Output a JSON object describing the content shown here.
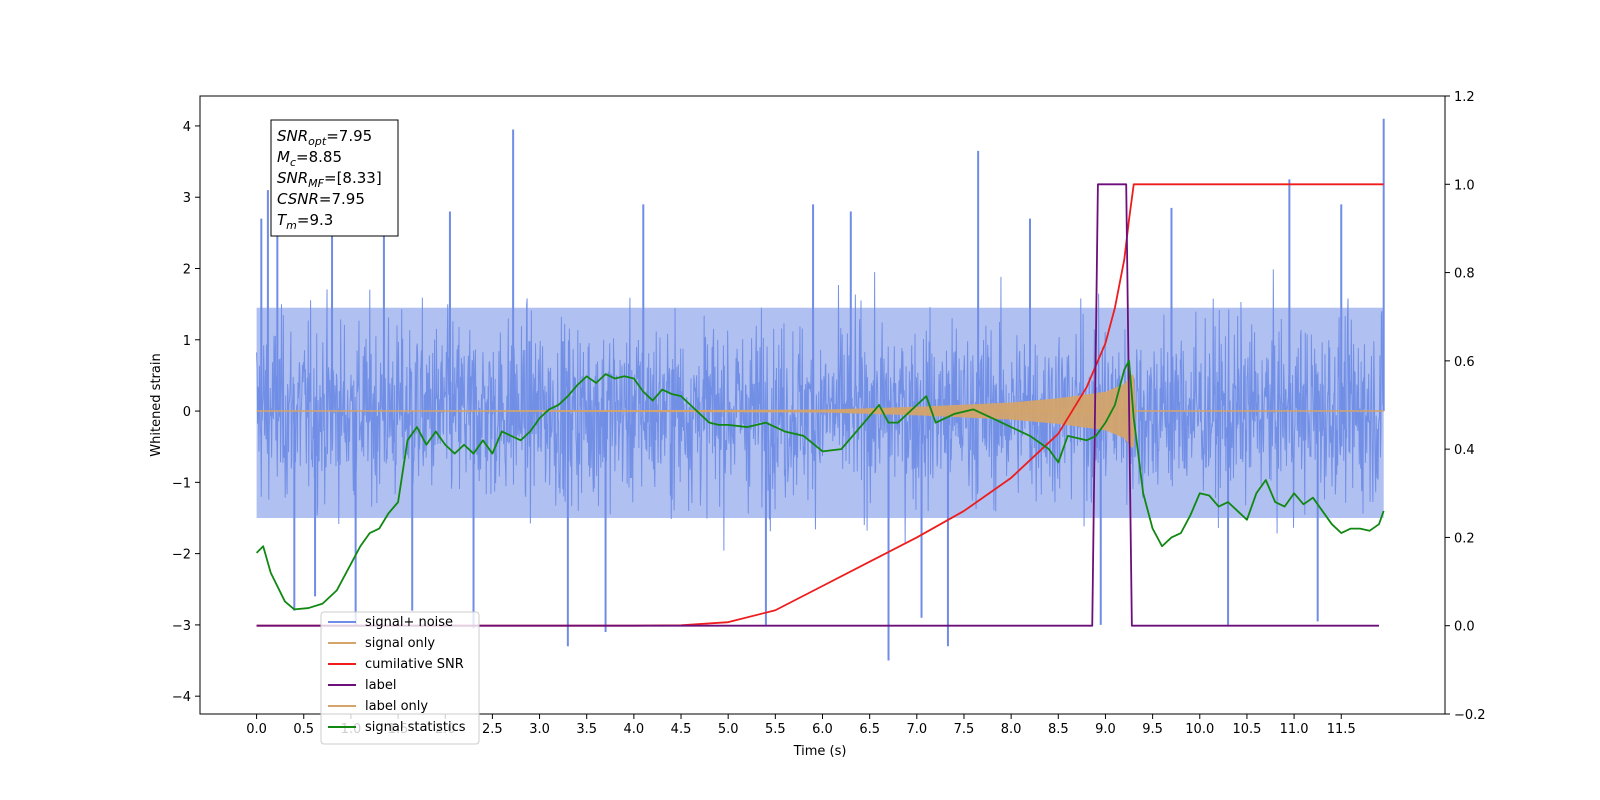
{
  "chart_data": {
    "type": "line",
    "title": "",
    "xlabel": "Time (s)",
    "ylabel": "Whitened strain",
    "y2label": "",
    "xlim": [
      -0.6,
      12.6
    ],
    "ylim": [
      -4.25,
      4.42
    ],
    "y2lim": [
      -0.2,
      1.2
    ],
    "xticks": [
      0.0,
      0.5,
      1.0,
      1.5,
      2.0,
      2.5,
      3.0,
      3.5,
      4.0,
      4.5,
      5.0,
      5.5,
      6.0,
      6.5,
      7.0,
      7.5,
      8.0,
      8.5,
      9.0,
      9.5,
      10.0,
      10.5,
      11.0,
      11.5
    ],
    "xtick_labels": [
      "0.0",
      "0.5",
      "1.0",
      "1.5",
      "2.0",
      "2.5",
      "3.0",
      "3.5",
      "4.0",
      "4.5",
      "5.0",
      "5.5",
      "6.0",
      "6.5",
      "7.0",
      "7.5",
      "8.0",
      "8.5",
      "9.0",
      "9.5",
      "10.0",
      "10.5",
      "11.0",
      "11.5"
    ],
    "yticks": [
      4,
      3,
      2,
      1,
      0,
      -1,
      -2,
      -3,
      -4
    ],
    "ytick_labels": [
      "4",
      "3",
      "2",
      "1",
      "0",
      "−1",
      "−2",
      "−3",
      "−4"
    ],
    "y2ticks": [
      1.2,
      1.0,
      0.8,
      0.6,
      0.4,
      0.2,
      0.0,
      -0.2
    ],
    "y2tick_labels": [
      "1.2",
      "1.0",
      "0.8",
      "0.6",
      "0.4",
      "0.2",
      "0.0",
      "−0.2"
    ],
    "grid": false,
    "legend_position": "lower-left",
    "annotation": {
      "lines": [
        {
          "base": "SNR",
          "sub": "opt",
          "value": "=7.95"
        },
        {
          "base": "M",
          "sub": "c",
          "value": "=8.85"
        },
        {
          "base": "SNR",
          "sub": "MF",
          "value": "=[8.33]"
        },
        {
          "base": "CSNR",
          "sub": "",
          "value": "=7.95"
        },
        {
          "base": "T",
          "sub": "m",
          "value": "=9.3"
        }
      ]
    },
    "noise_spikes": {
      "x": [
        0.05,
        0.12,
        0.22,
        0.4,
        0.62,
        0.8,
        1.05,
        1.35,
        1.65,
        2.05,
        2.3,
        2.72,
        3.3,
        3.7,
        4.1,
        5.4,
        5.9,
        6.3,
        6.7,
        7.05,
        7.33,
        7.65,
        8.2,
        8.95,
        9.7,
        10.3,
        10.95,
        11.25,
        11.5,
        11.95
      ],
      "y": [
        2.7,
        3.1,
        2.65,
        -2.8,
        -2.6,
        2.5,
        -3.0,
        3.0,
        -2.8,
        2.8,
        -3.05,
        3.95,
        -3.3,
        -3.1,
        2.9,
        -3.0,
        2.9,
        2.8,
        -3.5,
        -2.9,
        -3.3,
        3.65,
        2.7,
        -3.0,
        2.85,
        -3.0,
        3.25,
        -2.95,
        2.9,
        4.1
      ]
    },
    "series": [
      {
        "name": "signal+ noise",
        "axis": "left",
        "color": "#6f8ce6",
        "x": [
          0.0,
          11.95
        ],
        "band_upper": [
          1.45,
          1.45
        ],
        "band_lower": [
          -1.5,
          -1.5
        ]
      },
      {
        "name": "signal only",
        "axis": "left",
        "color": "#d4a46a",
        "x": [
          0.0,
          6.0,
          7.0,
          8.0,
          8.5,
          9.0,
          9.2,
          9.3,
          9.31,
          11.95
        ],
        "envelope": [
          0.0,
          0.02,
          0.06,
          0.12,
          0.18,
          0.27,
          0.38,
          0.55,
          0.0,
          0.0
        ]
      },
      {
        "name": "cumilative SNR",
        "axis": "right",
        "color": "#ee1c1c",
        "x": [
          0.0,
          4.0,
          4.5,
          5.0,
          5.5,
          6.0,
          6.5,
          7.0,
          7.5,
          8.0,
          8.5,
          8.8,
          9.0,
          9.1,
          9.2,
          9.25,
          9.3,
          9.32,
          11.95
        ],
        "values": [
          0.0,
          0.0,
          0.001,
          0.008,
          0.035,
          0.09,
          0.145,
          0.2,
          0.26,
          0.335,
          0.435,
          0.54,
          0.64,
          0.72,
          0.83,
          0.92,
          1.0,
          1.0,
          1.0
        ]
      },
      {
        "name": "label",
        "axis": "right",
        "color": "#6c0f7a",
        "x": [
          0.0,
          8.86,
          8.92,
          9.22,
          9.28,
          11.9
        ],
        "values": [
          0.0,
          0.0,
          1.0,
          1.0,
          0.0,
          0.0
        ]
      },
      {
        "name": "label only",
        "axis": "right",
        "color": "#d4a46a",
        "x": [],
        "values": []
      },
      {
        "name": "signal statistics",
        "axis": "right",
        "color": "#118811",
        "x": [
          0.0,
          0.07,
          0.15,
          0.3,
          0.4,
          0.55,
          0.7,
          0.85,
          1.0,
          1.1,
          1.2,
          1.3,
          1.4,
          1.5,
          1.6,
          1.7,
          1.8,
          1.9,
          2.0,
          2.1,
          2.2,
          2.3,
          2.4,
          2.5,
          2.6,
          2.7,
          2.8,
          2.9,
          3.0,
          3.1,
          3.2,
          3.3,
          3.4,
          3.5,
          3.6,
          3.7,
          3.8,
          3.9,
          4.0,
          4.1,
          4.2,
          4.3,
          4.4,
          4.5,
          4.6,
          4.7,
          4.8,
          4.9,
          5.0,
          5.2,
          5.4,
          5.6,
          5.8,
          6.0,
          6.2,
          6.4,
          6.6,
          6.7,
          6.8,
          7.0,
          7.1,
          7.2,
          7.4,
          7.6,
          7.8,
          8.0,
          8.2,
          8.4,
          8.5,
          8.6,
          8.8,
          8.9,
          9.0,
          9.1,
          9.2,
          9.25,
          9.3,
          9.4,
          9.5,
          9.6,
          9.7,
          9.8,
          9.9,
          10.0,
          10.1,
          10.2,
          10.3,
          10.4,
          10.5,
          10.6,
          10.7,
          10.8,
          10.9,
          11.0,
          11.1,
          11.2,
          11.3,
          11.4,
          11.5,
          11.6,
          11.7,
          11.8,
          11.9,
          11.95
        ],
        "values": [
          0.165,
          0.18,
          0.12,
          0.055,
          0.037,
          0.04,
          0.05,
          0.08,
          0.14,
          0.18,
          0.21,
          0.22,
          0.255,
          0.28,
          0.42,
          0.45,
          0.41,
          0.44,
          0.41,
          0.39,
          0.41,
          0.39,
          0.42,
          0.39,
          0.44,
          0.43,
          0.42,
          0.44,
          0.47,
          0.49,
          0.5,
          0.52,
          0.545,
          0.565,
          0.55,
          0.57,
          0.56,
          0.565,
          0.56,
          0.53,
          0.51,
          0.535,
          0.525,
          0.52,
          0.5,
          0.48,
          0.46,
          0.455,
          0.455,
          0.45,
          0.46,
          0.44,
          0.43,
          0.395,
          0.4,
          0.45,
          0.5,
          0.46,
          0.46,
          0.5,
          0.52,
          0.46,
          0.48,
          0.49,
          0.47,
          0.45,
          0.43,
          0.4,
          0.37,
          0.43,
          0.42,
          0.43,
          0.46,
          0.5,
          0.58,
          0.6,
          0.47,
          0.3,
          0.22,
          0.18,
          0.2,
          0.21,
          0.25,
          0.3,
          0.295,
          0.27,
          0.28,
          0.26,
          0.24,
          0.3,
          0.33,
          0.28,
          0.27,
          0.3,
          0.275,
          0.29,
          0.26,
          0.23,
          0.21,
          0.22,
          0.22,
          0.215,
          0.23,
          0.26
        ]
      }
    ]
  }
}
